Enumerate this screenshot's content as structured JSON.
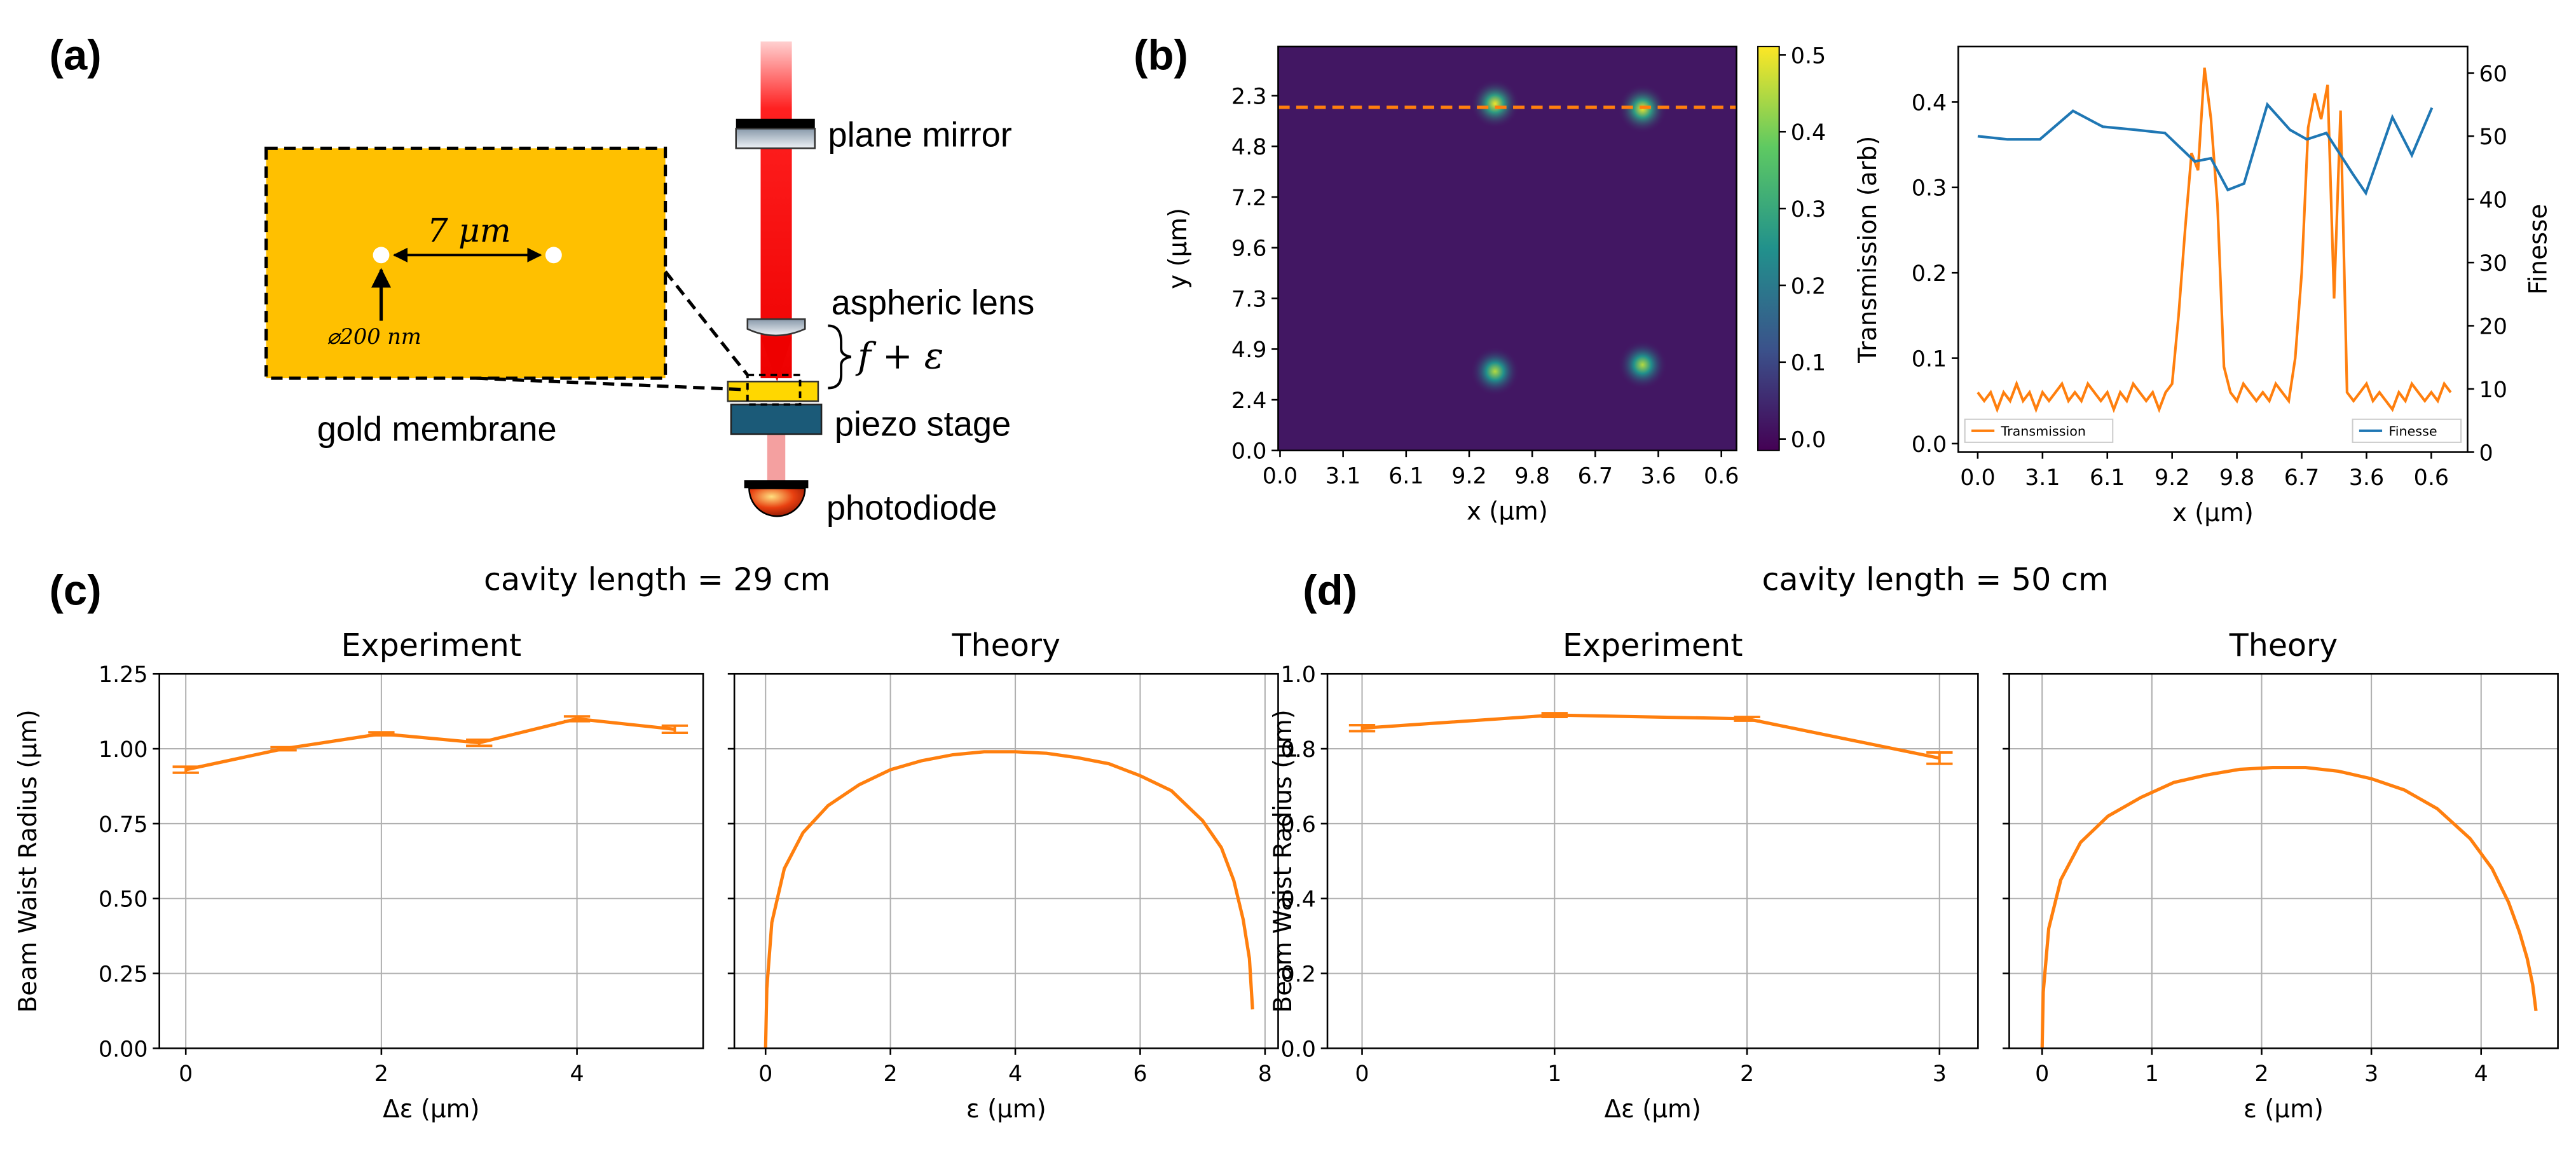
{
  "panel_labels": [
    "(a)",
    "(b)",
    "(c)",
    "(d)"
  ],
  "diagram": {
    "plane_mirror": "plane mirror",
    "aspheric_lens": "aspheric lens",
    "focus": "f + ε",
    "piezo_stage": "piezo stage",
    "photodiode": "photodiode",
    "membrane": "gold membrane",
    "spacing": "7 μm",
    "diameter": "⌀200 nm"
  },
  "chart_data": [
    {
      "type": "heatmap",
      "xlabel": "x (μm)",
      "ylabel": "y (μm)",
      "xlim": [
        -0.03,
        7.24
      ],
      "ylim": [
        0,
        7.97
      ],
      "xticks": [
        {
          "value": 0,
          "label": "0.0"
        },
        {
          "value": 1,
          "label": "3.1"
        },
        {
          "value": 2,
          "label": "6.1"
        },
        {
          "value": 3,
          "label": "9.2"
        },
        {
          "value": 4,
          "label": "9.8"
        },
        {
          "value": 5,
          "label": "6.7"
        },
        {
          "value": 6,
          "label": "3.6"
        },
        {
          "value": 7,
          "label": "0.6"
        }
      ],
      "yticks": [
        {
          "value": 0,
          "label": "0.0"
        },
        {
          "value": 1,
          "label": "2.4"
        },
        {
          "value": 2,
          "label": "4.9"
        },
        {
          "value": 3,
          "label": "7.3"
        },
        {
          "value": 4,
          "label": "9.6"
        },
        {
          "value": 5,
          "label": "7.2"
        },
        {
          "value": 6,
          "label": "4.8"
        },
        {
          "value": 7,
          "label": "2.3"
        }
      ],
      "clim": [
        -0.015,
        0.511
      ],
      "cticks": [
        {
          "value": 0,
          "label": "0.0"
        },
        0.1,
        0.2,
        0.3,
        0.4,
        0.5
      ],
      "colormap": [
        "#440154",
        "#3b528b",
        "#21918c",
        "#5ec962",
        "#fde725"
      ],
      "background": 0.02,
      "spots": {
        "x": [
          3.41,
          5.75,
          3.41,
          5.75
        ],
        "y": [
          6.84,
          6.74,
          1.56,
          1.69
        ],
        "values": [
          0.5,
          0.5,
          0.45,
          0.45
        ]
      },
      "hline": {
        "y": 6.77,
        "color": "#ff7f0e"
      }
    },
    {
      "type": "line",
      "xlabel": "x (μm)",
      "ylabel": "Transmission (arb)",
      "y2label": "Finesse",
      "xlim": [
        -0.3,
        7.56
      ],
      "ylim": [
        -0.01,
        0.465
      ],
      "y2lim": [
        0,
        64.2
      ],
      "xticks": [
        {
          "value": 0,
          "label": "0.0"
        },
        {
          "value": 1,
          "label": "3.1"
        },
        {
          "value": 2,
          "label": "6.1"
        },
        {
          "value": 3,
          "label": "9.2"
        },
        {
          "value": 4,
          "label": "9.8"
        },
        {
          "value": 5,
          "label": "6.7"
        },
        {
          "value": 6,
          "label": "3.6"
        },
        {
          "value": 7,
          "label": "0.6"
        }
      ],
      "yticks": [
        {
          "value": 0,
          "label": "0.0"
        },
        0.1,
        0.2,
        0.3,
        0.4
      ],
      "y2ticks": [
        0,
        10,
        20,
        30,
        40,
        50,
        60
      ],
      "series": [
        {
          "name": "Transmission",
          "color": "#ff7f0e",
          "legend": "lower left",
          "x": [
            0,
            0.1,
            0.2,
            0.3,
            0.4,
            0.5,
            0.6,
            0.7,
            0.8,
            0.9,
            1,
            1.1,
            1.2,
            1.3,
            1.4,
            1.5,
            1.6,
            1.7,
            1.8,
            1.9,
            2,
            2.1,
            2.2,
            2.3,
            2.4,
            2.5,
            2.6,
            2.7,
            2.8,
            2.9,
            3,
            3.1,
            3.2,
            3.3,
            3.4,
            3.5,
            3.6,
            3.7,
            3.8,
            3.9,
            4,
            4.1,
            4.2,
            4.3,
            4.4,
            4.5,
            4.6,
            4.7,
            4.8,
            4.9,
            5,
            5.1,
            5.2,
            5.3,
            5.4,
            5.5,
            5.6,
            5.7,
            5.8,
            5.9,
            6,
            6.1,
            6.2,
            6.3,
            6.4,
            6.5,
            6.6,
            6.7,
            6.8,
            6.9,
            7,
            7.1,
            7.2,
            7.3
          ],
          "values": [
            0.06,
            0.05,
            0.06,
            0.04,
            0.06,
            0.05,
            0.07,
            0.05,
            0.06,
            0.04,
            0.06,
            0.05,
            0.06,
            0.07,
            0.05,
            0.06,
            0.05,
            0.07,
            0.06,
            0.05,
            0.06,
            0.04,
            0.06,
            0.05,
            0.07,
            0.06,
            0.05,
            0.06,
            0.04,
            0.06,
            0.07,
            0.15,
            0.25,
            0.34,
            0.32,
            0.44,
            0.38,
            0.28,
            0.09,
            0.06,
            0.05,
            0.07,
            0.06,
            0.05,
            0.06,
            0.05,
            0.07,
            0.06,
            0.05,
            0.1,
            0.2,
            0.37,
            0.41,
            0.38,
            0.42,
            0.17,
            0.39,
            0.06,
            0.05,
            0.06,
            0.07,
            0.05,
            0.06,
            0.05,
            0.04,
            0.06,
            0.05,
            0.07,
            0.06,
            0.05,
            0.06,
            0.05,
            0.07,
            0.06
          ]
        },
        {
          "name": "Finesse",
          "color": "#1f77b4",
          "axis": "y2",
          "legend": "lower right",
          "x": [
            0,
            0.46,
            0.96,
            1.47,
            1.93,
            2.44,
            2.89,
            3.35,
            3.6,
            3.86,
            4.11,
            4.47,
            4.82,
            5.08,
            5.38,
            5.79,
            5.99,
            6.4,
            6.7,
            7.01
          ],
          "values": [
            50,
            49.5,
            49.5,
            54,
            51.5,
            51,
            50.5,
            46,
            46.5,
            41.5,
            42.5,
            55,
            51,
            49.5,
            50.5,
            44,
            41,
            53,
            47,
            54.5
          ]
        }
      ]
    },
    {
      "type": "errorbar",
      "suptitle": "cavity length = 29 cm",
      "title": "Experiment",
      "xlabel": "Δε (μm)",
      "ylabel": "Beam Waist Radius (μm)",
      "grid": true,
      "color": "#ff7f0e",
      "xlim": [
        -0.27,
        5.29
      ],
      "ylim": [
        0,
        1.25
      ],
      "xticks": [
        0,
        2,
        4
      ],
      "yticks": [
        {
          "value": 0,
          "label": "0.00"
        },
        {
          "value": 0.25,
          "label": "0.25"
        },
        {
          "value": 0.5,
          "label": "0.50"
        },
        {
          "value": 0.75,
          "label": "0.75"
        },
        {
          "value": 1,
          "label": "1.00"
        },
        {
          "value": 1.25,
          "label": "1.25"
        }
      ],
      "x": [
        0,
        1,
        2,
        3,
        4,
        5
      ],
      "values": [
        0.93,
        1.0,
        1.05,
        1.02,
        1.1,
        1.065
      ],
      "errors": [
        0.01,
        0.005,
        0.005,
        0.01,
        0.008,
        0.012
      ]
    },
    {
      "type": "line",
      "title": "Theory",
      "xlabel": "ε (μm)",
      "grid": true,
      "y_tick_labels": false,
      "color": "#ff7f0e",
      "xlim": [
        -0.5,
        8.21
      ],
      "ylim": [
        0,
        1.25
      ],
      "xticks": [
        0,
        2,
        4,
        6,
        8
      ],
      "yticks": [
        0,
        0.25,
        0.5,
        0.75,
        1,
        1.25
      ],
      "x": [
        0,
        0.02,
        0.1,
        0.3,
        0.6,
        1,
        1.5,
        2,
        2.5,
        3,
        3.5,
        4,
        4.5,
        5,
        5.5,
        6,
        6.5,
        7,
        7.3,
        7.5,
        7.65,
        7.75,
        7.8
      ],
      "values": [
        0,
        0.2,
        0.42,
        0.6,
        0.72,
        0.81,
        0.88,
        0.93,
        0.96,
        0.98,
        0.99,
        0.99,
        0.985,
        0.97,
        0.95,
        0.91,
        0.86,
        0.76,
        0.67,
        0.56,
        0.43,
        0.3,
        0.13
      ]
    },
    {
      "type": "errorbar",
      "suptitle": "cavity length = 50 cm",
      "title": "Experiment",
      "xlabel": "Δε (μm)",
      "ylabel": "Beam Waist Radius (μm)",
      "grid": true,
      "color": "#ff7f0e",
      "xlim": [
        -0.18,
        3.2
      ],
      "ylim": [
        0,
        1.0
      ],
      "xticks": [
        0,
        1,
        2,
        3
      ],
      "yticks": [
        {
          "value": 0,
          "label": "0.0"
        },
        0.2,
        0.4,
        0.6,
        0.8,
        {
          "value": 1,
          "label": "1.0"
        }
      ],
      "x": [
        0,
        1,
        2,
        3
      ],
      "values": [
        0.855,
        0.89,
        0.88,
        0.775
      ],
      "errors": [
        0.008,
        0.005,
        0.005,
        0.015
      ]
    },
    {
      "type": "line",
      "title": "Theory",
      "xlabel": "ε (μm)",
      "grid": true,
      "y_tick_labels": false,
      "color": "#ff7f0e",
      "xlim": [
        -0.3,
        4.7
      ],
      "ylim": [
        0,
        1.0
      ],
      "xticks": [
        0,
        1,
        2,
        3,
        4
      ],
      "yticks": [
        0,
        0.2,
        0.4,
        0.6,
        0.8,
        1
      ],
      "x": [
        0,
        0.01,
        0.06,
        0.17,
        0.35,
        0.6,
        0.9,
        1.2,
        1.5,
        1.8,
        2.1,
        2.4,
        2.7,
        3.0,
        3.3,
        3.6,
        3.9,
        4.1,
        4.25,
        4.35,
        4.42,
        4.47,
        4.5
      ],
      "values": [
        0,
        0.15,
        0.32,
        0.45,
        0.55,
        0.62,
        0.67,
        0.71,
        0.73,
        0.745,
        0.75,
        0.75,
        0.74,
        0.72,
        0.69,
        0.64,
        0.56,
        0.48,
        0.39,
        0.31,
        0.24,
        0.17,
        0.1
      ]
    }
  ]
}
